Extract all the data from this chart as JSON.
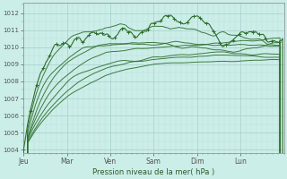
{
  "xlabel": "Pression niveau de la mer( hPa )",
  "bg_color": "#cceee8",
  "grid_major_color": "#aad4ce",
  "grid_minor_color": "#bcdeda",
  "line_color": "#2d6e2d",
  "ylim": [
    1003.8,
    1012.6
  ],
  "yticks": [
    1004,
    1005,
    1006,
    1007,
    1008,
    1009,
    1010,
    1011,
    1012
  ],
  "day_labels": [
    "Jeu",
    "Mar",
    "Ven",
    "Sam",
    "Dim",
    "Lun"
  ],
  "day_positions": [
    0,
    1,
    2,
    3,
    4,
    5
  ],
  "xlim": [
    0,
    6
  ],
  "n_steps": 200,
  "seed": 7
}
